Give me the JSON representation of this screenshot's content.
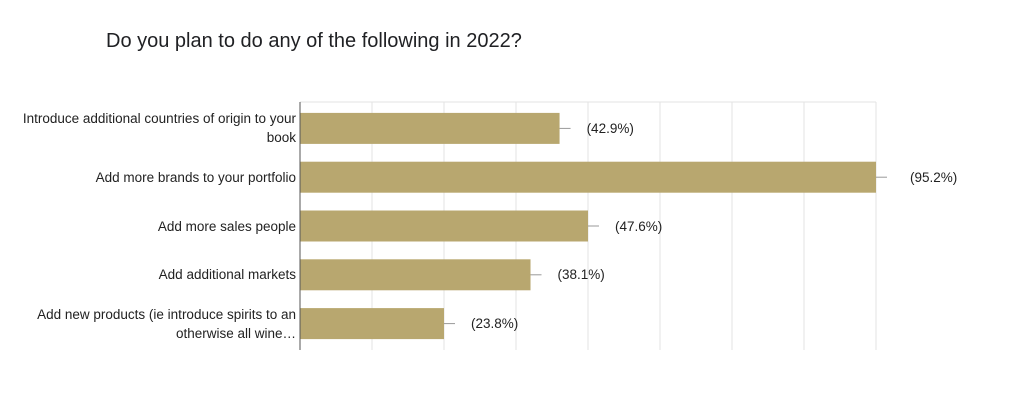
{
  "chart_data": {
    "type": "bar",
    "orientation": "horizontal",
    "title": "Do you plan to do any of the following in 2022?",
    "categories": [
      "Introduce additional countries of origin to your book",
      "Add more brands to your portfolio",
      "Add more sales people",
      "Add additional markets",
      "Add new products (ie introduce spirits to an otherwise all wine…"
    ],
    "values": [
      42.9,
      95.2,
      47.6,
      38.1,
      23.8
    ],
    "value_labels": [
      "(42.9%)",
      "(95.2%)",
      "(47.6%)",
      "(38.1%)",
      "(23.8%)"
    ],
    "xlim": [
      0,
      95.2
    ],
    "grid": true,
    "bar_color": "#b8a76f",
    "grid_color": "#e3e3e3"
  }
}
